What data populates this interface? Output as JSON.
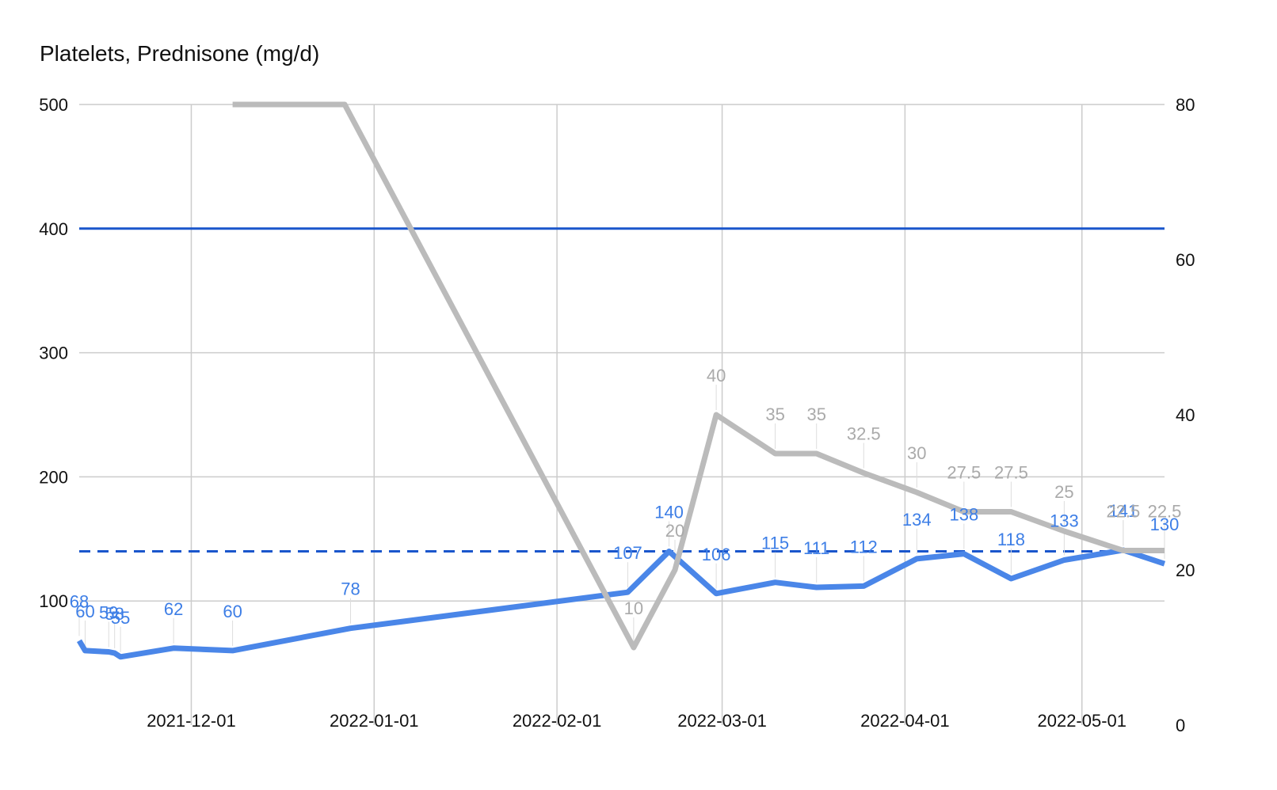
{
  "chart_data": {
    "type": "line",
    "title": "Platelets, Prednisone (mg/d)",
    "left_axis": {
      "ylim": [
        0,
        500
      ],
      "ticks": [
        "",
        "100",
        "200",
        "300",
        "400",
        "500"
      ]
    },
    "right_axis": {
      "ylim": [
        0,
        80
      ],
      "ticks": [
        "0",
        "20",
        "40",
        "60",
        "80"
      ]
    },
    "x_ticks": [
      "2021-12-01",
      "2022-01-01",
      "2022-02-01",
      "2022-03-01",
      "2022-04-01",
      "2022-05-01"
    ],
    "grid": true,
    "reference_lines": [
      {
        "value": 400,
        "axis": "left",
        "style": "solid",
        "color": "#1a56cc"
      },
      {
        "value": 140,
        "axis": "left",
        "style": "dashed",
        "color": "#1a56cc"
      }
    ],
    "series": [
      {
        "key": "platelets",
        "axis": "left",
        "color": "#4a86e8",
        "points": [
          {
            "x": "2021-11-12",
            "y": 68,
            "label": "68"
          },
          {
            "x": "2021-11-13",
            "y": 60,
            "label": "60"
          },
          {
            "x": "2021-11-17",
            "y": 59,
            "label": "59"
          },
          {
            "x": "2021-11-18",
            "y": 58,
            "label": "58"
          },
          {
            "x": "2021-11-19",
            "y": 55,
            "label": "55"
          },
          {
            "x": "2021-11-28",
            "y": 62,
            "label": "62"
          },
          {
            "x": "2021-12-08",
            "y": 60,
            "label": "60"
          },
          {
            "x": "2021-12-28",
            "y": 78,
            "label": "78"
          },
          {
            "x": "2022-02-13",
            "y": 107,
            "label": "107"
          },
          {
            "x": "2022-02-20",
            "y": 140,
            "label": "140"
          },
          {
            "x": "2022-02-28",
            "y": 106,
            "label": "106"
          },
          {
            "x": "2022-03-10",
            "y": 115,
            "label": "115"
          },
          {
            "x": "2022-03-17",
            "y": 111,
            "label": "111"
          },
          {
            "x": "2022-03-25",
            "y": 112,
            "label": "112"
          },
          {
            "x": "2022-04-03",
            "y": 134,
            "label": "134"
          },
          {
            "x": "2022-04-11",
            "y": 138,
            "label": "138"
          },
          {
            "x": "2022-04-19",
            "y": 118,
            "label": "118"
          },
          {
            "x": "2022-04-28",
            "y": 133,
            "label": "133"
          },
          {
            "x": "2022-05-08",
            "y": 141,
            "label": "141"
          },
          {
            "x": "2022-05-15",
            "y": 130,
            "label": "130"
          }
        ]
      },
      {
        "key": "prednisone",
        "axis": "right",
        "color": "#bbbbbb",
        "points": [
          {
            "x": "2021-12-08",
            "y": 80,
            "label": ""
          },
          {
            "x": "2021-12-27",
            "y": 80,
            "label": ""
          },
          {
            "x": "2022-02-14",
            "y": 10,
            "label": "10"
          },
          {
            "x": "2022-02-21",
            "y": 20,
            "label": "20"
          },
          {
            "x": "2022-02-28",
            "y": 40,
            "label": "40"
          },
          {
            "x": "2022-03-10",
            "y": 35,
            "label": "35"
          },
          {
            "x": "2022-03-17",
            "y": 35,
            "label": "35"
          },
          {
            "x": "2022-03-25",
            "y": 32.5,
            "label": "32.5"
          },
          {
            "x": "2022-04-03",
            "y": 30,
            "label": "30"
          },
          {
            "x": "2022-04-11",
            "y": 27.5,
            "label": "27.5"
          },
          {
            "x": "2022-04-19",
            "y": 27.5,
            "label": "27.5"
          },
          {
            "x": "2022-04-28",
            "y": 25,
            "label": "25"
          },
          {
            "x": "2022-05-08",
            "y": 22.5,
            "label": "22.5"
          },
          {
            "x": "2022-05-15",
            "y": 22.5,
            "label": "22.5"
          }
        ]
      }
    ]
  }
}
